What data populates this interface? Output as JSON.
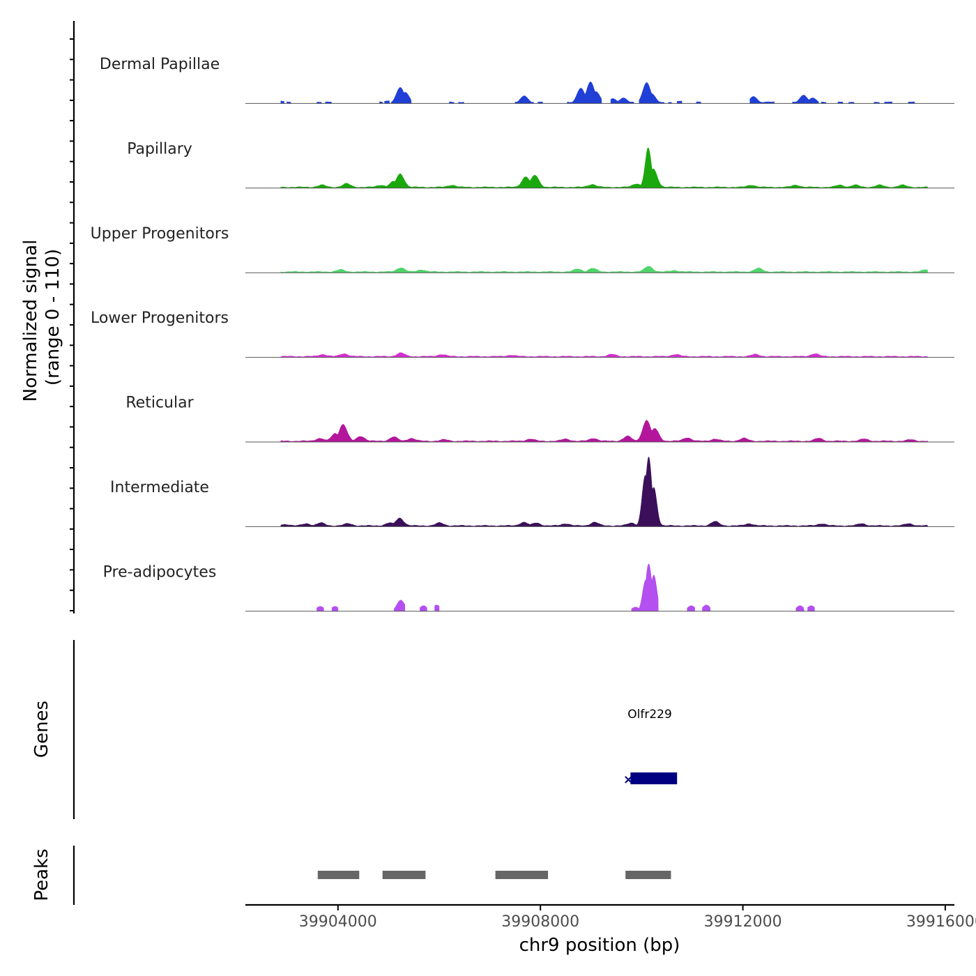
{
  "chart_data": {
    "type": "area",
    "title": "",
    "ylabel_line1": "Normalized signal",
    "ylabel_line2": "(range 0 - 110)",
    "ylim": [
      0,
      110
    ],
    "xlabel": "chr9 position (bp)",
    "xlim": [
      39902170,
      39916180
    ],
    "xticks": [
      {
        "value": 39904000,
        "label": "39904000"
      },
      {
        "value": 39908000,
        "label": "39908000"
      },
      {
        "value": 39912000,
        "label": "39912000"
      },
      {
        "value": 39916000,
        "label": "39916000"
      }
    ],
    "tracks": [
      {
        "name": "Dermal Papillae",
        "color": "#1f3fd6",
        "style": "gaps",
        "peaks": [
          [
            39905230,
            23
          ],
          [
            39905330,
            16
          ],
          [
            39908800,
            22
          ],
          [
            39908990,
            31
          ],
          [
            39909100,
            17
          ],
          [
            39910100,
            30
          ],
          [
            39910200,
            14
          ],
          [
            39912210,
            10
          ],
          [
            39913200,
            12
          ],
          [
            39913380,
            8
          ],
          [
            39907680,
            11
          ],
          [
            39909640,
            8
          ],
          [
            39909430,
            7
          ]
        ],
        "segments": [
          [
            39902870,
            39902940,
            3
          ],
          [
            39902990,
            39903070,
            2
          ],
          [
            39903580,
            39903680,
            2
          ],
          [
            39903750,
            39903870,
            2
          ],
          [
            39904820,
            39904880,
            2
          ],
          [
            39904920,
            39905020,
            4
          ],
          [
            39905050,
            39905450,
            2
          ],
          [
            39906200,
            39906290,
            2
          ],
          [
            39906380,
            39906490,
            2
          ],
          [
            39907500,
            39907620,
            2
          ],
          [
            39907620,
            39907870,
            2
          ],
          [
            39907950,
            39908050,
            2
          ],
          [
            39908530,
            39909210,
            2
          ],
          [
            39909390,
            39909850,
            2
          ],
          [
            39909950,
            39910450,
            2
          ],
          [
            39910530,
            39910590,
            2
          ],
          [
            39910700,
            39910800,
            3
          ],
          [
            39911080,
            39911170,
            2
          ],
          [
            39912140,
            39912620,
            2
          ],
          [
            39912980,
            39913500,
            2
          ],
          [
            39913550,
            39913650,
            2
          ],
          [
            39913880,
            39913980,
            2
          ],
          [
            39914090,
            39914200,
            2
          ],
          [
            39914590,
            39914700,
            2
          ],
          [
            39914800,
            39914950,
            2
          ],
          [
            39915270,
            39915400,
            2
          ]
        ]
      },
      {
        "name": "Papillary",
        "color": "#1aa80d",
        "style": "continuous",
        "start": 39902870,
        "end": 39915650,
        "peaks": [
          [
            39905230,
            19
          ],
          [
            39905100,
            8
          ],
          [
            39904170,
            5
          ],
          [
            39907710,
            15
          ],
          [
            39907890,
            17
          ],
          [
            39910130,
            56
          ],
          [
            39910230,
            26
          ],
          [
            39909900,
            5
          ],
          [
            39909020,
            4
          ],
          [
            39904850,
            3
          ],
          [
            39903680,
            3
          ],
          [
            39906250,
            3
          ],
          [
            39912170,
            3
          ],
          [
            39913050,
            3
          ],
          [
            39913920,
            3
          ],
          [
            39914220,
            3
          ],
          [
            39914700,
            3
          ],
          [
            39915150,
            3
          ]
        ]
      },
      {
        "name": "Upper Progenitors",
        "color": "#4fd46a",
        "style": "continuous",
        "start": 39902870,
        "end": 39915650,
        "peaks": [
          [
            39905240,
            6
          ],
          [
            39904050,
            3
          ],
          [
            39909030,
            5
          ],
          [
            39908740,
            4
          ],
          [
            39910140,
            8
          ],
          [
            39912310,
            5
          ],
          [
            39915630,
            3
          ],
          [
            39905650,
            3
          ],
          [
            39910650,
            2
          ]
        ]
      },
      {
        "name": "Lower Progenitors",
        "color": "#d42fcf",
        "style": "continuous",
        "start": 39902870,
        "end": 39915650,
        "peaks": [
          [
            39905240,
            5
          ],
          [
            39904120,
            4
          ],
          [
            39903700,
            3
          ],
          [
            39909410,
            3
          ],
          [
            39910670,
            3
          ],
          [
            39913420,
            4
          ],
          [
            39912250,
            3
          ],
          [
            39906050,
            3
          ],
          [
            39907420,
            2
          ]
        ]
      },
      {
        "name": "Reticular",
        "color": "#b3159b",
        "style": "continuous",
        "start": 39902870,
        "end": 39915650,
        "peaks": [
          [
            39904100,
            24
          ],
          [
            39903950,
            11
          ],
          [
            39903640,
            4
          ],
          [
            39904450,
            7
          ],
          [
            39905100,
            6
          ],
          [
            39905450,
            4
          ],
          [
            39910100,
            30
          ],
          [
            39910260,
            18
          ],
          [
            39909720,
            7
          ],
          [
            39910900,
            5
          ],
          [
            39909050,
            4
          ],
          [
            39908500,
            3
          ],
          [
            39913500,
            4
          ],
          [
            39912020,
            4
          ],
          [
            39914400,
            3
          ],
          [
            39911450,
            3
          ],
          [
            39915320,
            2
          ],
          [
            39906100,
            2
          ],
          [
            39907800,
            3
          ]
        ]
      },
      {
        "name": "Intermediate",
        "color": "#3b0f5a",
        "style": "continuous",
        "start": 39902870,
        "end": 39915650,
        "peaks": [
          [
            39910140,
            98
          ],
          [
            39910070,
            72
          ],
          [
            39910240,
            55
          ],
          [
            39905220,
            11
          ],
          [
            39905020,
            4
          ],
          [
            39907670,
            5
          ],
          [
            39907920,
            4
          ],
          [
            39911450,
            6
          ],
          [
            39909070,
            5
          ],
          [
            39908500,
            3
          ],
          [
            39909800,
            4
          ],
          [
            39903380,
            3
          ],
          [
            39903660,
            4
          ],
          [
            39904200,
            3
          ],
          [
            39906010,
            4
          ],
          [
            39912130,
            3
          ],
          [
            39913560,
            3
          ],
          [
            39914350,
            3
          ],
          [
            39915280,
            3
          ],
          [
            39902970,
            2
          ]
        ]
      },
      {
        "name": "Pre-adipocytes",
        "color": "#b44ff0",
        "style": "gaps",
        "peaks": [
          [
            39910140,
            68
          ],
          [
            39910080,
            45
          ],
          [
            39910240,
            52
          ],
          [
            39905240,
            16
          ],
          [
            39903650,
            7
          ],
          [
            39903940,
            7
          ],
          [
            39905690,
            8
          ],
          [
            39905950,
            9
          ],
          [
            39909880,
            6
          ],
          [
            39910980,
            8
          ],
          [
            39911280,
            9
          ],
          [
            39913130,
            8
          ],
          [
            39913350,
            8
          ]
        ],
        "segments": [
          [
            39903580,
            39903720,
            1
          ],
          [
            39903880,
            39904000,
            1
          ],
          [
            39905110,
            39905320,
            1
          ],
          [
            39905620,
            39905760,
            1
          ],
          [
            39905910,
            39906000,
            1
          ],
          [
            39909800,
            39910330,
            1
          ],
          [
            39910900,
            39911050,
            1
          ],
          [
            39911200,
            39911360,
            1
          ],
          [
            39913050,
            39913210,
            1
          ],
          [
            39913280,
            39913420,
            1
          ]
        ]
      }
    ],
    "genes_label": "Genes",
    "gene": {
      "name": "Olfr229",
      "start": 39909780,
      "end": 39910700,
      "strand": "-",
      "color": "#000080"
    },
    "peaks_label": "Peaks",
    "peak_regions": [
      {
        "start": 39903600,
        "end": 39904420
      },
      {
        "start": 39904880,
        "end": 39905730
      },
      {
        "start": 39907110,
        "end": 39908150
      },
      {
        "start": 39909680,
        "end": 39910580
      }
    ],
    "peak_color": "#666666"
  }
}
